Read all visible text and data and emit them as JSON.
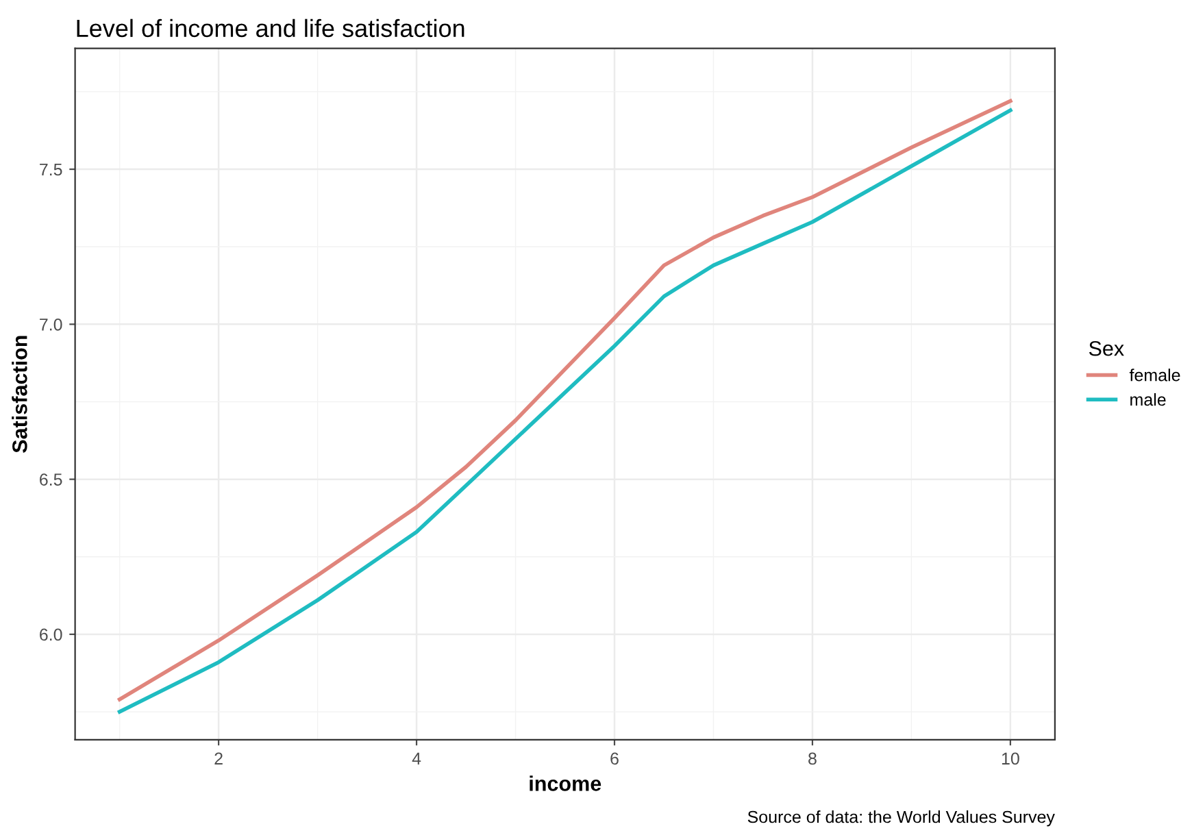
{
  "chart_data": {
    "type": "line",
    "title": "Level of income and life satisfaction",
    "xlabel": "income",
    "ylabel": "Satisfaction",
    "legend_title": "Sex",
    "annotations": [
      "Source of data: the World Values Survey"
    ],
    "x": [
      1,
      2,
      3,
      4,
      4.5,
      5,
      6,
      6.5,
      7,
      7.5,
      8,
      9,
      10
    ],
    "series": [
      {
        "name": "female",
        "color": "#e0857c",
        "values": [
          5.79,
          5.98,
          6.19,
          6.41,
          6.54,
          6.69,
          7.02,
          7.19,
          7.28,
          7.35,
          7.41,
          7.57,
          7.72
        ]
      },
      {
        "name": "male",
        "color": "#1fbcc1",
        "values": [
          5.75,
          5.91,
          6.11,
          6.33,
          6.48,
          6.63,
          6.93,
          7.09,
          7.19,
          7.26,
          7.33,
          7.51,
          7.69
        ]
      }
    ],
    "xlim": [
      0.55,
      10.45
    ],
    "ylim": [
      5.66,
      7.89
    ],
    "xticks": [
      2,
      4,
      6,
      8,
      10
    ],
    "yticks": [
      {
        "value": 6,
        "label": "6.0"
      },
      6.5,
      {
        "value": 7,
        "label": "7.0"
      },
      7.5
    ],
    "grid": true,
    "legend": "right",
    "marker": "none",
    "line_style": "solid"
  }
}
